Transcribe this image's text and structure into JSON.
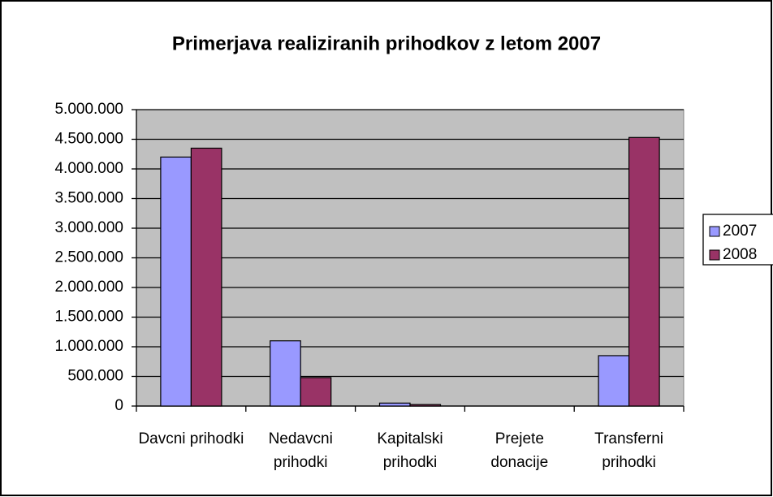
{
  "chart_data": {
    "type": "bar",
    "title": "Primerjava realiziranih prihodkov z letom 2007",
    "categories": [
      "Davcni prihodki",
      "Nedavcni prihodki",
      "Kapitalski prihodki",
      "Prejete donacije",
      "Transferni prihodki"
    ],
    "series": [
      {
        "name": "2007",
        "color": "#9999ff",
        "values": [
          4200000,
          1100000,
          50000,
          0,
          850000
        ]
      },
      {
        "name": "2008",
        "color": "#993366",
        "values": [
          4350000,
          480000,
          25000,
          0,
          4530000
        ]
      }
    ],
    "ylim": [
      0,
      5000000
    ],
    "yticks": [
      0,
      {
        "value": 500000,
        "label": "500.000"
      },
      {
        "value": 1000000,
        "label": "1.000.000"
      },
      {
        "value": 1500000,
        "label": "1.500.000"
      },
      {
        "value": 2000000,
        "label": "2.000.000"
      },
      {
        "value": 2500000,
        "label": "2.500.000"
      },
      {
        "value": 3000000,
        "label": "3.000.000"
      },
      {
        "value": 3500000,
        "label": "3.500.000"
      },
      {
        "value": 4000000,
        "label": "4.000.000"
      },
      {
        "value": 4500000,
        "label": "4.500.000"
      },
      {
        "value": 5000000,
        "label": "5.000.000"
      }
    ],
    "grid": true,
    "legend": "right",
    "plot_background": "#c0c0c0"
  }
}
